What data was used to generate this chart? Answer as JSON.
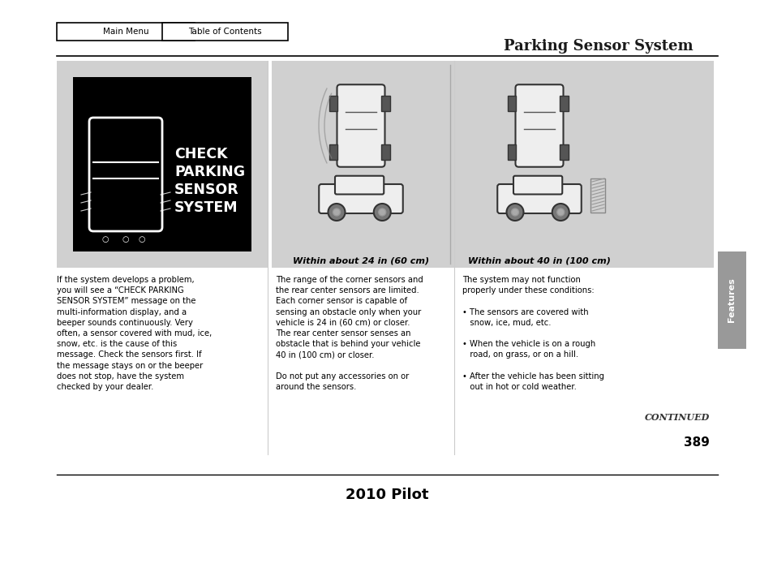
{
  "bg_color": "#ffffff",
  "page_bg": "#ffffff",
  "title": "Parking Sensor System",
  "nav_buttons": [
    "Main Menu",
    "Table of Contents"
  ],
  "footer_text": "2010 Pilot",
  "page_number": "389",
  "sidebar_label": "Features",
  "continued_text": "CONTINUED",
  "left_panel_bg": "#d8d8d8",
  "right_panel_bg": "#d8d8d8",
  "check_system_lines": [
    "CHECK",
    "PARKING",
    "SENSOR",
    "SYSTEM"
  ],
  "caption1": "Within about 24 in (60 cm)",
  "caption2": "Within about 40 in (100 cm)",
  "left_body_text": "If the system develops a problem,\nyou will see a “CHECK PARKING\nSENSOR SYSTEM” message on the\nmulti-information display, and a\nbeeper sounds continuously. Very\noften, a sensor covered with mud, ice,\nsnow, etc. is the cause of this\nmessage. Check the sensors first. If\nthe message stays on or the beeper\ndoes not stop, have the system\nchecked by your dealer.",
  "mid_body_text": "The range of the corner sensors and\nthe rear center sensors are limited.\nEach corner sensor is capable of\nsensing an obstacle only when your\nvehicle is 24 in (60 cm) or closer.\nThe rear center sensor senses an\nobstacle that is behind your vehicle\n40 in (100 cm) or closer.\n\nDo not put any accessories on or\naround the sensors.",
  "right_body_text": "The system may not function\nproperly under these conditions:\n\n• The sensors are covered with\n   snow, ice, mud, etc.\n\n• When the vehicle is on a rough\n   road, on grass, or on a hill.\n\n• After the vehicle has been sitting\n   out in hot or cold weather."
}
